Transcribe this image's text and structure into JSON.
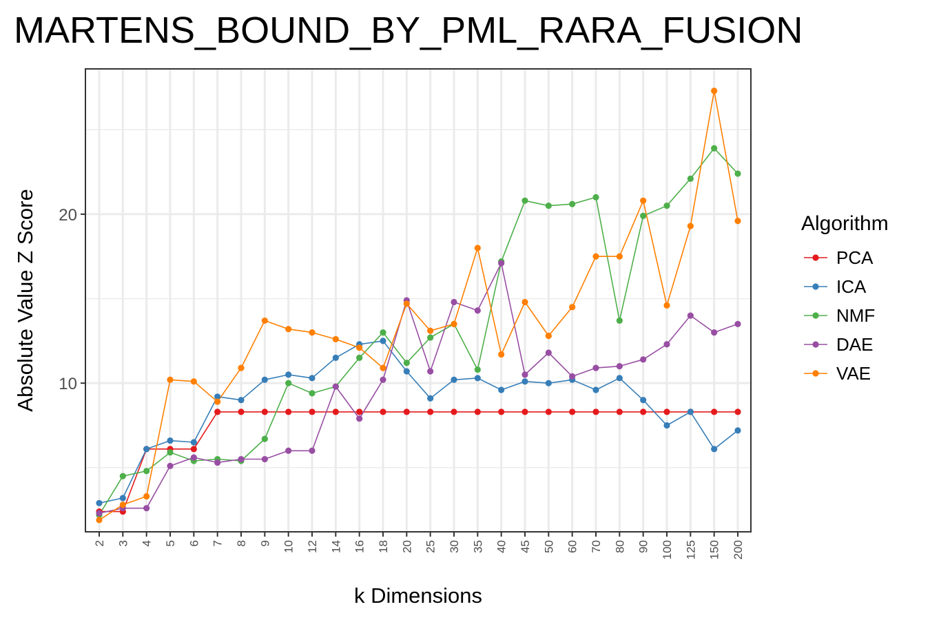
{
  "chart_data": {
    "type": "line",
    "title": "MARTENS_BOUND_BY_PML_RARA_FUSION",
    "xlabel": "k Dimensions",
    "ylabel": "Absolute Value Z Score",
    "categories": [
      "2",
      "3",
      "4",
      "5",
      "6",
      "7",
      "8",
      "9",
      "10",
      "12",
      "14",
      "16",
      "18",
      "20",
      "25",
      "30",
      "35",
      "40",
      "45",
      "50",
      "60",
      "70",
      "80",
      "90",
      "100",
      "125",
      "150",
      "200"
    ],
    "ylim": [
      1.2,
      28.6
    ],
    "yticks": [
      10,
      20
    ],
    "grid": true,
    "legend_title": "Algorithm",
    "legend_position": "right",
    "series": [
      {
        "name": "PCA",
        "color": "#E41A1C",
        "values": [
          2.4,
          2.4,
          6.1,
          6.1,
          6.1,
          8.3,
          8.3,
          8.3,
          8.3,
          8.3,
          8.3,
          8.3,
          8.3,
          8.3,
          8.3,
          8.3,
          8.3,
          8.3,
          8.3,
          8.3,
          8.3,
          8.3,
          8.3,
          8.3,
          8.3,
          8.3,
          8.3,
          8.3
        ]
      },
      {
        "name": "ICA",
        "color": "#377EB8",
        "values": [
          2.9,
          3.2,
          6.1,
          6.6,
          6.5,
          9.2,
          9.0,
          10.2,
          10.5,
          10.3,
          11.5,
          12.3,
          12.5,
          10.7,
          9.1,
          10.2,
          10.3,
          9.6,
          10.1,
          10.0,
          10.2,
          9.6,
          10.3,
          9.0,
          7.5,
          8.3,
          6.1,
          7.2
        ]
      },
      {
        "name": "NMF",
        "color": "#4DAF4A",
        "values": [
          2.2,
          4.5,
          4.8,
          5.9,
          5.4,
          5.5,
          5.4,
          6.7,
          10.0,
          9.4,
          9.8,
          11.5,
          13.0,
          11.2,
          12.7,
          13.5,
          10.8,
          17.2,
          20.8,
          20.5,
          20.6,
          21.0,
          13.7,
          19.9,
          20.5,
          22.1,
          23.9,
          22.4
        ]
      },
      {
        "name": "DAE",
        "color": "#984EA3",
        "values": [
          2.3,
          2.6,
          2.6,
          5.1,
          5.6,
          5.3,
          5.5,
          5.5,
          6.0,
          6.0,
          9.8,
          7.9,
          10.2,
          14.9,
          10.7,
          14.8,
          14.3,
          17.1,
          10.5,
          11.8,
          10.4,
          10.9,
          11.0,
          11.4,
          12.3,
          14.0,
          13.0,
          13.5
        ]
      },
      {
        "name": "VAE",
        "color": "#FF7F00",
        "values": [
          1.9,
          2.8,
          3.3,
          10.2,
          10.1,
          8.9,
          10.9,
          13.7,
          13.2,
          13.0,
          12.6,
          12.1,
          10.9,
          14.7,
          13.1,
          13.5,
          18.0,
          11.7,
          14.8,
          12.8,
          14.5,
          17.5,
          17.5,
          20.8,
          14.6,
          19.3,
          27.3,
          19.6
        ]
      }
    ]
  }
}
